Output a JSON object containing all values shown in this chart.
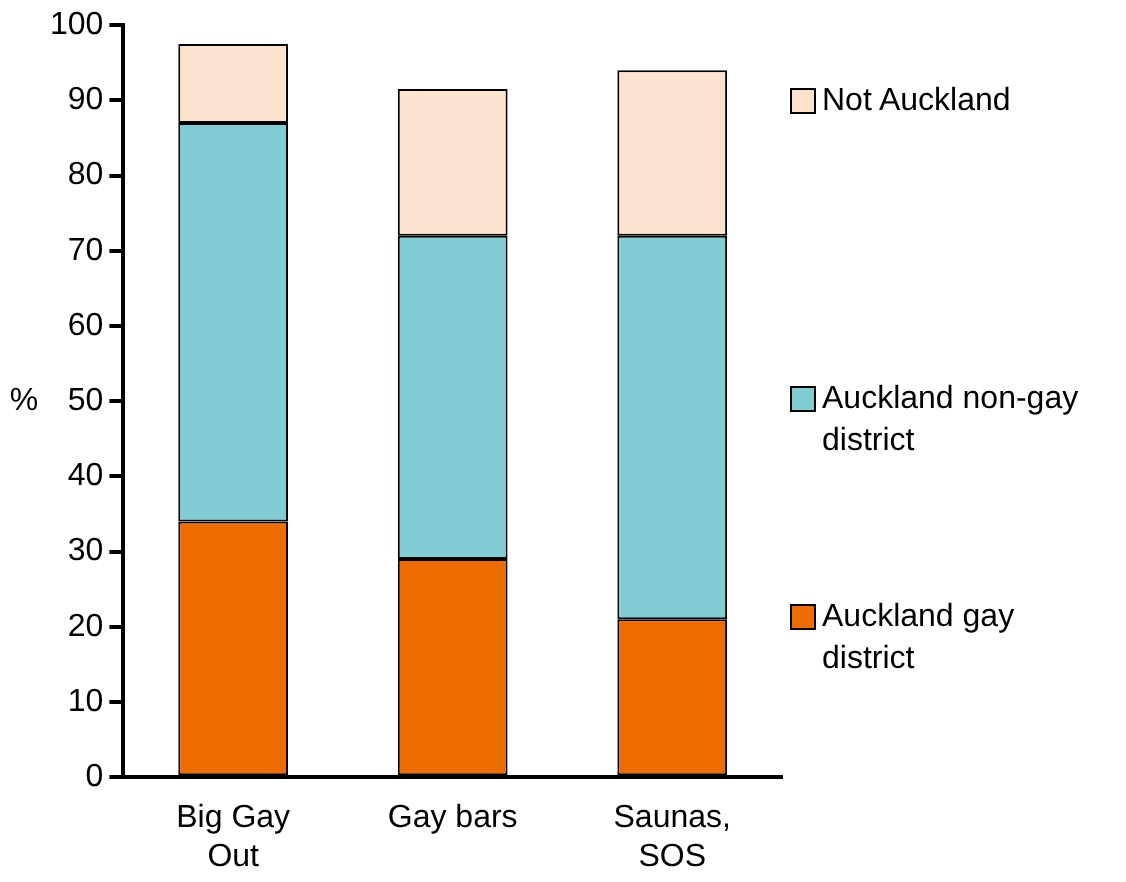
{
  "chart_data": {
    "type": "bar",
    "stacked": true,
    "ylabel": "%",
    "categories": [
      "Big Gay Out",
      "Gay bars",
      "Saunas, SOS"
    ],
    "series": [
      {
        "name": "Auckland gay district",
        "color": "#ec6c00",
        "values": [
          34,
          29,
          21
        ]
      },
      {
        "name": "Auckland non-gay district",
        "color": "#82cdd4",
        "values": [
          53,
          43,
          51
        ]
      },
      {
        "name": "Not Auckland",
        "color": "#fce3cd",
        "values": [
          10.5,
          19.5,
          22
        ]
      }
    ],
    "ylim": [
      0,
      100
    ],
    "yticks": [
      0,
      10,
      20,
      30,
      40,
      50,
      60,
      70,
      80,
      90,
      100
    ],
    "grid": false,
    "legend": "right"
  }
}
